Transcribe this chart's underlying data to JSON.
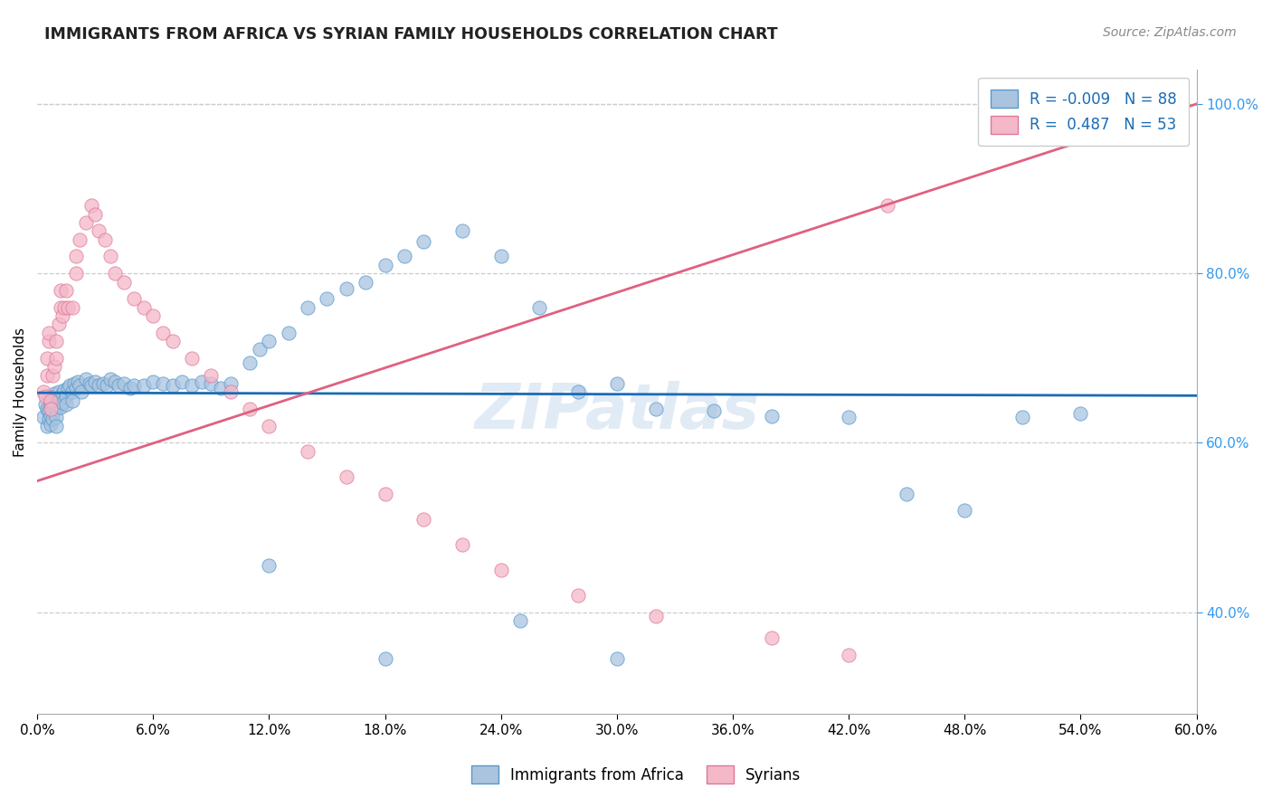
{
  "title": "IMMIGRANTS FROM AFRICA VS SYRIAN FAMILY HOUSEHOLDS CORRELATION CHART",
  "source": "Source: ZipAtlas.com",
  "ylabel": "Family Households",
  "xmin": 0.0,
  "xmax": 0.6,
  "ymin": 0.28,
  "ymax": 1.04,
  "yticks": [
    0.4,
    0.6,
    0.8,
    1.0
  ],
  "xticks": [
    0.0,
    0.06,
    0.12,
    0.18,
    0.24,
    0.3,
    0.36,
    0.42,
    0.48,
    0.54,
    0.6
  ],
  "legend_blue_r": "-0.009",
  "legend_blue_n": "88",
  "legend_pink_r": "0.487",
  "legend_pink_n": "53",
  "legend_label_blue": "Immigrants from Africa",
  "legend_label_pink": "Syrians",
  "blue_dot_color": "#aac4df",
  "blue_edge_color": "#5599cc",
  "pink_dot_color": "#f4b8c8",
  "pink_edge_color": "#dd7799",
  "blue_line_color": "#1a6bb5",
  "pink_line_color": "#e06080",
  "watermark": "ZIPatlas",
  "blue_r": -0.009,
  "blue_n": 88,
  "pink_r": 0.487,
  "pink_n": 53,
  "blue_scatter_x": [
    0.003,
    0.004,
    0.005,
    0.005,
    0.006,
    0.006,
    0.006,
    0.007,
    0.007,
    0.007,
    0.008,
    0.008,
    0.008,
    0.009,
    0.009,
    0.01,
    0.01,
    0.01,
    0.01,
    0.011,
    0.011,
    0.012,
    0.012,
    0.013,
    0.013,
    0.014,
    0.015,
    0.015,
    0.016,
    0.017,
    0.018,
    0.018,
    0.019,
    0.02,
    0.021,
    0.022,
    0.023,
    0.025,
    0.027,
    0.028,
    0.03,
    0.032,
    0.034,
    0.036,
    0.038,
    0.04,
    0.042,
    0.045,
    0.048,
    0.05,
    0.055,
    0.06,
    0.065,
    0.07,
    0.075,
    0.08,
    0.085,
    0.09,
    0.095,
    0.1,
    0.11,
    0.115,
    0.12,
    0.13,
    0.14,
    0.15,
    0.16,
    0.17,
    0.18,
    0.19,
    0.2,
    0.22,
    0.24,
    0.26,
    0.28,
    0.3,
    0.32,
    0.35,
    0.38,
    0.42,
    0.45,
    0.48,
    0.51,
    0.54,
    0.12,
    0.25,
    0.18,
    0.3
  ],
  "blue_scatter_y": [
    0.63,
    0.645,
    0.64,
    0.62,
    0.655,
    0.638,
    0.628,
    0.642,
    0.632,
    0.622,
    0.648,
    0.638,
    0.628,
    0.658,
    0.648,
    0.65,
    0.64,
    0.63,
    0.62,
    0.66,
    0.65,
    0.652,
    0.642,
    0.658,
    0.648,
    0.662,
    0.655,
    0.645,
    0.665,
    0.668,
    0.66,
    0.65,
    0.67,
    0.665,
    0.672,
    0.668,
    0.66,
    0.675,
    0.67,
    0.668,
    0.672,
    0.668,
    0.67,
    0.668,
    0.675,
    0.672,
    0.668,
    0.67,
    0.665,
    0.668,
    0.668,
    0.672,
    0.67,
    0.668,
    0.672,
    0.668,
    0.672,
    0.67,
    0.665,
    0.67,
    0.695,
    0.71,
    0.72,
    0.73,
    0.76,
    0.77,
    0.782,
    0.79,
    0.81,
    0.82,
    0.838,
    0.85,
    0.82,
    0.76,
    0.66,
    0.67,
    0.64,
    0.638,
    0.632,
    0.63,
    0.54,
    0.52,
    0.63,
    0.635,
    0.455,
    0.39,
    0.345,
    0.345
  ],
  "pink_scatter_x": [
    0.003,
    0.004,
    0.005,
    0.005,
    0.006,
    0.006,
    0.007,
    0.007,
    0.008,
    0.009,
    0.01,
    0.01,
    0.011,
    0.012,
    0.012,
    0.013,
    0.014,
    0.015,
    0.016,
    0.018,
    0.02,
    0.02,
    0.022,
    0.025,
    0.028,
    0.03,
    0.032,
    0.035,
    0.038,
    0.04,
    0.045,
    0.05,
    0.055,
    0.06,
    0.065,
    0.07,
    0.08,
    0.09,
    0.1,
    0.11,
    0.12,
    0.14,
    0.16,
    0.18,
    0.2,
    0.22,
    0.24,
    0.28,
    0.32,
    0.38,
    0.42,
    0.44,
    0.56
  ],
  "pink_scatter_y": [
    0.66,
    0.655,
    0.68,
    0.7,
    0.72,
    0.73,
    0.65,
    0.64,
    0.68,
    0.69,
    0.7,
    0.72,
    0.74,
    0.76,
    0.78,
    0.75,
    0.76,
    0.78,
    0.76,
    0.76,
    0.8,
    0.82,
    0.84,
    0.86,
    0.88,
    0.87,
    0.85,
    0.84,
    0.82,
    0.8,
    0.79,
    0.77,
    0.76,
    0.75,
    0.73,
    0.72,
    0.7,
    0.68,
    0.66,
    0.64,
    0.62,
    0.59,
    0.56,
    0.54,
    0.51,
    0.48,
    0.45,
    0.42,
    0.395,
    0.37,
    0.35,
    0.88,
    0.99
  ]
}
